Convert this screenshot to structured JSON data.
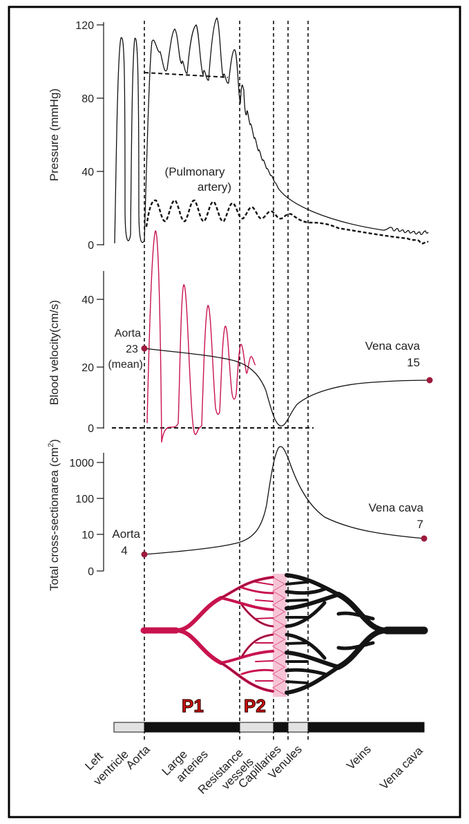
{
  "colors": {
    "ink": "#1a1a1a",
    "arterial": "#c8134e",
    "arterial_light": "#ef8bb0",
    "p_label_fill": "#d41010",
    "p_label_stroke": "#3a0000",
    "bar_light": "#e2e2e2",
    "bar_dark": "#111111"
  },
  "pressure": {
    "ylabel": "Pressure (mmHg)",
    "ticks": [
      "120",
      "80",
      "40",
      "0"
    ],
    "pulmonary_label_line1": "(Pulmonary",
    "pulmonary_label_line2": "artery)"
  },
  "velocity": {
    "ylabel": "Blood velocity(cm/s)",
    "ticks": [
      "40",
      "20",
      "0"
    ],
    "aorta_line1": "Aorta",
    "aorta_line2": "23",
    "aorta_line3": "(mean)",
    "venacava_line1": "Vena cava",
    "venacava_line2": "15"
  },
  "area": {
    "ylabel": "Total  cross-sectionarea  (cm",
    "ylabel_sup": "2",
    "ylabel_close": ")",
    "ticks": [
      "1000",
      "100",
      "10",
      "0"
    ],
    "aorta_line1": "Aorta",
    "aorta_line2": "4",
    "venacava_line1": "Vena cava",
    "venacava_line2": "7"
  },
  "segments": {
    "p1": "P1",
    "p2": "P2",
    "labels": [
      "Left",
      "ventricle",
      "Aorta",
      "Large",
      "arteries",
      "Resistance",
      "vessels",
      "Capillaries",
      "Venules",
      "Veins",
      "Vena cava"
    ]
  }
}
